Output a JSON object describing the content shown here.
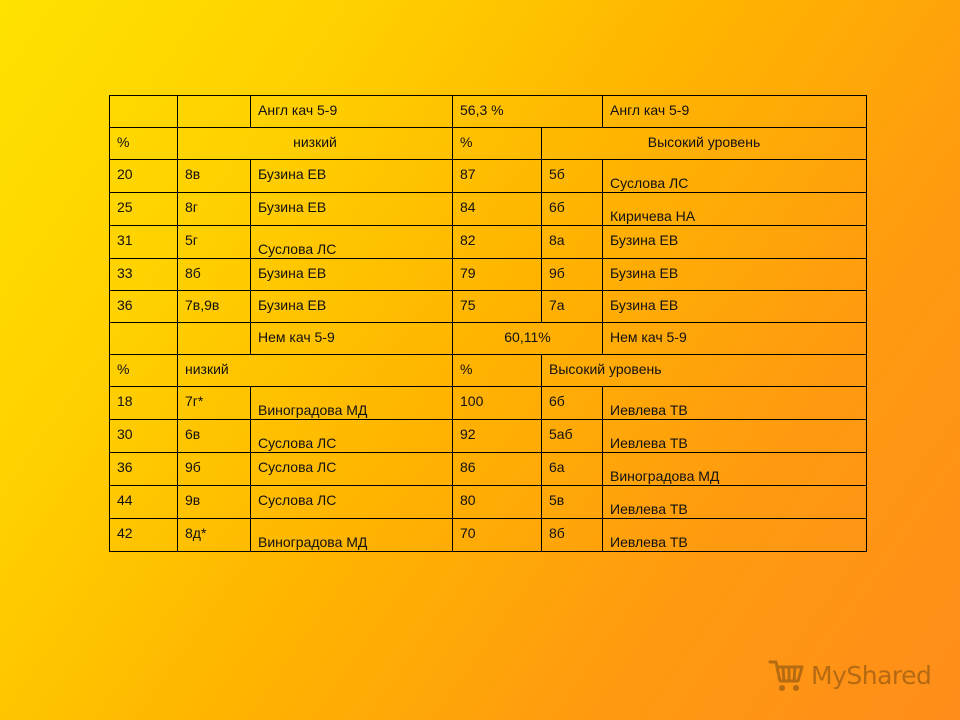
{
  "table": {
    "rows": [
      {
        "cells": [
          "",
          "",
          "Англ  кач 5-9",
          "56,3 %",
          "Англ   кач 5-9"
        ]
      },
      {
        "cells": [
          "%",
          "низкий",
          "%",
          "Высокий уровень"
        ]
      },
      {
        "cells": [
          "20",
          "8в",
          "Бузина ЕВ",
          "87",
          "5б",
          "Суслова ЛС"
        ]
      },
      {
        "cells": [
          "25",
          "8г",
          "Бузина ЕВ",
          "84",
          "6б",
          "Киричева НА"
        ]
      },
      {
        "cells": [
          "31",
          "5г",
          "Суслова ЛС",
          "82",
          "8а",
          "Бузина ЕВ"
        ]
      },
      {
        "cells": [
          "33",
          "8б",
          "Бузина ЕВ",
          "79",
          "9б",
          "Бузина ЕВ"
        ]
      },
      {
        "cells": [
          "36",
          "7в,9в",
          "Бузина ЕВ",
          "75",
          "7а",
          "Бузина ЕВ"
        ]
      },
      {
        "cells": [
          "",
          "",
          "Нем  кач 5-9",
          "60,11%",
          "Нем  кач 5-9"
        ]
      },
      {
        "cells": [
          "%",
          "низкий",
          "%",
          "Высокий уровень"
        ]
      },
      {
        "cells": [
          "18",
          "7г*",
          "Виноградова МД",
          "100",
          "6б",
          "Иевлева ТВ"
        ]
      },
      {
        "cells": [
          "30",
          "6в",
          "Суслова ЛС",
          "92",
          "5аб",
          "Иевлева ТВ"
        ]
      },
      {
        "cells": [
          "36",
          "9б",
          "Суслова ЛС",
          "86",
          "6а",
          "Виноградова МД"
        ]
      },
      {
        "cells": [
          "44",
          "9в",
          "Суслова ЛС",
          "80",
          "5в",
          "Иевлева ТВ"
        ]
      },
      {
        "cells": [
          "42",
          "8д*",
          "Виноградова МД",
          "70",
          "8б",
          "Иевлева ТВ"
        ]
      }
    ]
  },
  "watermark": {
    "text": "MyShared",
    "icon": "shopping-cart-icon"
  }
}
